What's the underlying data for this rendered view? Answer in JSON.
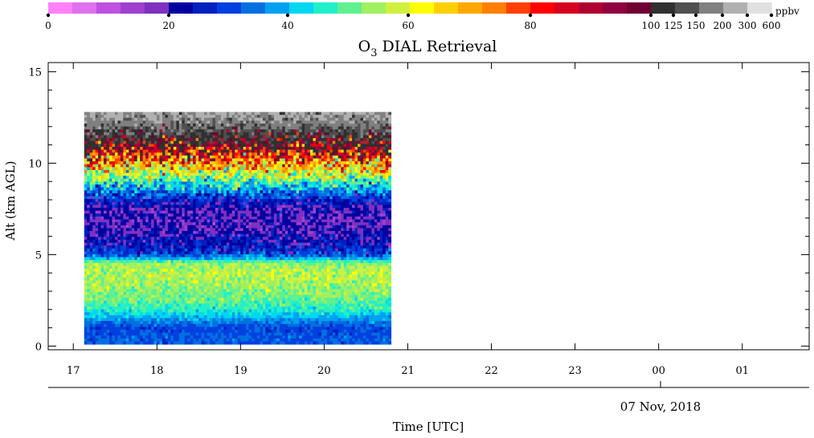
{
  "chart_data": {
    "type": "heatmap",
    "title_main": "O",
    "title_sub": "3",
    "title_rest": " DIAL Retrieval",
    "xlabel": "Time [UTC]",
    "ylabel": "Alt (km AGL)",
    "date_label": "07 Nov, 2018",
    "colorbar_unit": "ppbv",
    "colorbar_tick_labels": [
      "0",
      "20",
      "40",
      "60",
      "80",
      "100",
      "125",
      "150",
      "200",
      "300",
      "600"
    ],
    "colorbar_colors": [
      "#ff80ff",
      "#e070ee",
      "#c050e0",
      "#a040d0",
      "#8030c0",
      "#0000a0",
      "#0020c0",
      "#0040e0",
      "#0070e0",
      "#00a0f0",
      "#00d8f0",
      "#20f0c8",
      "#60f090",
      "#a0f060",
      "#d0f040",
      "#ffff00",
      "#ffd000",
      "#ffa800",
      "#ff8000",
      "#ff4000",
      "#ff0000",
      "#d80020",
      "#b00030",
      "#900040",
      "#700030",
      "#303030",
      "#505050",
      "#808080",
      "#b0b0b0",
      "#e0e0e0"
    ],
    "x_tick_labels": [
      "17",
      "18",
      "19",
      "20",
      "21",
      "22",
      "23",
      "00",
      "01"
    ],
    "x_range_hours_utc": [
      16.7,
      25.8
    ],
    "y_tick_labels": [
      "0",
      "5",
      "10",
      "15"
    ],
    "ylim": [
      -0.2,
      15.5
    ],
    "data_x_range_hours_utc": [
      17.13,
      20.8
    ],
    "data_y_range_km": [
      0.1,
      12.8
    ],
    "profile": [
      {
        "alt_km": 0.5,
        "o3_ppbv": 32
      },
      {
        "alt_km": 1.0,
        "o3_ppbv": 30
      },
      {
        "alt_km": 1.5,
        "o3_ppbv": 38
      },
      {
        "alt_km": 2.0,
        "o3_ppbv": 46
      },
      {
        "alt_km": 2.5,
        "o3_ppbv": 50
      },
      {
        "alt_km": 3.0,
        "o3_ppbv": 53
      },
      {
        "alt_km": 3.5,
        "o3_ppbv": 55
      },
      {
        "alt_km": 4.0,
        "o3_ppbv": 56
      },
      {
        "alt_km": 4.5,
        "o3_ppbv": 54
      },
      {
        "alt_km": 5.0,
        "o3_ppbv": 30
      },
      {
        "alt_km": 5.5,
        "o3_ppbv": 24
      },
      {
        "alt_km": 6.0,
        "o3_ppbv": 22
      },
      {
        "alt_km": 6.5,
        "o3_ppbv": 20
      },
      {
        "alt_km": 7.0,
        "o3_ppbv": 20
      },
      {
        "alt_km": 7.5,
        "o3_ppbv": 21
      },
      {
        "alt_km": 8.0,
        "o3_ppbv": 26
      },
      {
        "alt_km": 8.5,
        "o3_ppbv": 36
      },
      {
        "alt_km": 9.0,
        "o3_ppbv": 48
      },
      {
        "alt_km": 9.5,
        "o3_ppbv": 60
      },
      {
        "alt_km": 10.0,
        "o3_ppbv": 72
      },
      {
        "alt_km": 10.5,
        "o3_ppbv": 84
      },
      {
        "alt_km": 11.0,
        "o3_ppbv": 100
      },
      {
        "alt_km": 11.5,
        "o3_ppbv": 120
      },
      {
        "alt_km": 12.0,
        "o3_ppbv": 150
      },
      {
        "alt_km": 12.5,
        "o3_ppbv": 200
      }
    ]
  }
}
